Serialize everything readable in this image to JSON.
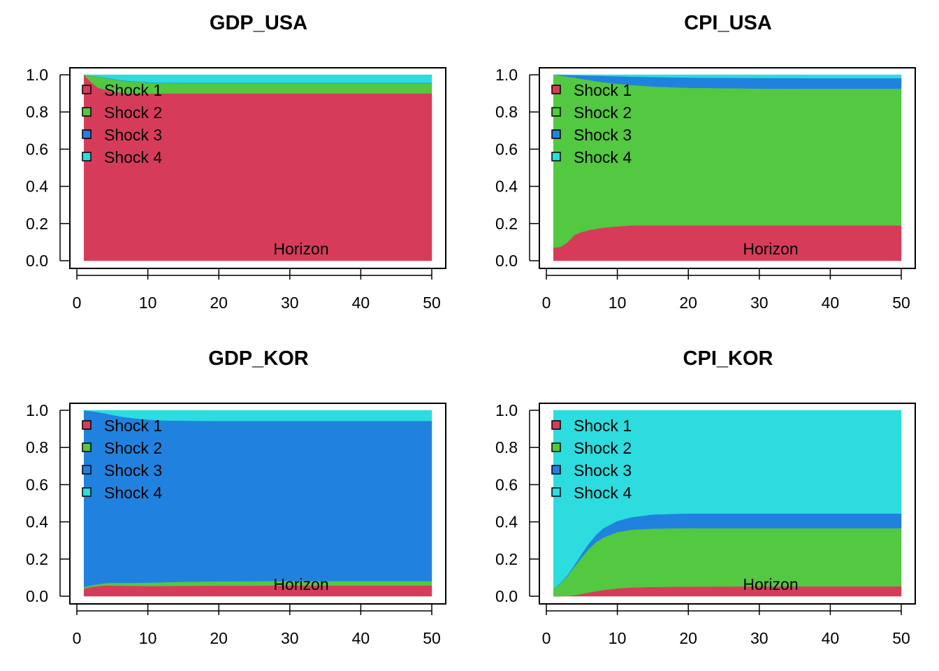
{
  "chart_data": [
    {
      "type": "area",
      "stacked": true,
      "title": "GDP_USA",
      "xlabel": "Horizon",
      "ylabel": "",
      "xlim": [
        0,
        50
      ],
      "ylim": [
        0,
        1
      ],
      "xticks": [
        "0",
        "10",
        "20",
        "30",
        "40",
        "50"
      ],
      "yticks": [
        "0.0",
        "0.2",
        "0.4",
        "0.6",
        "0.8",
        "1.0"
      ],
      "grid": false,
      "legend_position": "top-left",
      "x": [
        1,
        2,
        3,
        4,
        5,
        6,
        7,
        8,
        10,
        12,
        15,
        20,
        30,
        40,
        50
      ],
      "series": [
        {
          "name": "Shock 1",
          "color": "#D63C5A",
          "values": [
            1.0,
            0.96,
            0.93,
            0.92,
            0.91,
            0.905,
            0.9,
            0.9,
            0.9,
            0.9,
            0.9,
            0.9,
            0.9,
            0.9,
            0.9
          ]
        },
        {
          "name": "Shock 2",
          "color": "#53C841",
          "values": [
            0.0,
            0.035,
            0.06,
            0.063,
            0.066,
            0.066,
            0.066,
            0.063,
            0.058,
            0.056,
            0.055,
            0.055,
            0.055,
            0.055,
            0.055
          ]
        },
        {
          "name": "Shock 3",
          "color": "#2082DE",
          "values": [
            0.0,
            0.001,
            0.001,
            0.002,
            0.002,
            0.002,
            0.002,
            0.002,
            0.002,
            0.002,
            0.002,
            0.002,
            0.002,
            0.002,
            0.002
          ]
        },
        {
          "name": "Shock 4",
          "color": "#2CDCDF",
          "values": [
            0.0,
            0.004,
            0.009,
            0.015,
            0.022,
            0.027,
            0.032,
            0.035,
            0.04,
            0.042,
            0.043,
            0.043,
            0.043,
            0.043,
            0.043
          ]
        }
      ]
    },
    {
      "type": "area",
      "stacked": true,
      "title": "CPI_USA",
      "xlabel": "Horizon",
      "ylabel": "",
      "xlim": [
        0,
        50
      ],
      "ylim": [
        0,
        1
      ],
      "xticks": [
        "0",
        "10",
        "20",
        "30",
        "40",
        "50"
      ],
      "yticks": [
        "0.0",
        "0.2",
        "0.4",
        "0.6",
        "0.8",
        "1.0"
      ],
      "grid": false,
      "legend_position": "top-left",
      "x": [
        1,
        2,
        3,
        4,
        5,
        6,
        7,
        8,
        10,
        12,
        15,
        20,
        30,
        40,
        50
      ],
      "series": [
        {
          "name": "Shock 1",
          "color": "#D63C5A",
          "values": [
            0.07,
            0.075,
            0.1,
            0.14,
            0.155,
            0.165,
            0.172,
            0.178,
            0.185,
            0.19,
            0.19,
            0.19,
            0.19,
            0.19,
            0.19
          ]
        },
        {
          "name": "Shock 2",
          "color": "#53C841",
          "values": [
            0.93,
            0.92,
            0.89,
            0.845,
            0.823,
            0.807,
            0.793,
            0.782,
            0.767,
            0.755,
            0.747,
            0.74,
            0.736,
            0.735,
            0.735
          ]
        },
        {
          "name": "Shock 3",
          "color": "#2082DE",
          "values": [
            0.0,
            0.005,
            0.009,
            0.013,
            0.019,
            0.024,
            0.03,
            0.034,
            0.04,
            0.045,
            0.051,
            0.055,
            0.057,
            0.057,
            0.057
          ]
        },
        {
          "name": "Shock 4",
          "color": "#2CDCDF",
          "values": [
            0.0,
            0.0,
            0.001,
            0.002,
            0.003,
            0.004,
            0.005,
            0.006,
            0.008,
            0.01,
            0.012,
            0.015,
            0.017,
            0.018,
            0.018
          ]
        }
      ]
    },
    {
      "type": "area",
      "stacked": true,
      "title": "GDP_KOR",
      "xlabel": "Horizon",
      "ylabel": "",
      "xlim": [
        0,
        50
      ],
      "ylim": [
        0,
        1
      ],
      "xticks": [
        "0",
        "10",
        "20",
        "30",
        "40",
        "50"
      ],
      "yticks": [
        "0.0",
        "0.2",
        "0.4",
        "0.6",
        "0.8",
        "1.0"
      ],
      "grid": false,
      "legend_position": "top-left",
      "x": [
        1,
        2,
        3,
        4,
        5,
        6,
        7,
        8,
        10,
        12,
        15,
        20,
        30,
        40,
        50
      ],
      "series": [
        {
          "name": "Shock 1",
          "color": "#D63C5A",
          "values": [
            0.04,
            0.05,
            0.055,
            0.058,
            0.058,
            0.057,
            0.056,
            0.056,
            0.055,
            0.055,
            0.056,
            0.057,
            0.058,
            0.058,
            0.058
          ]
        },
        {
          "name": "Shock 2",
          "color": "#53C841",
          "values": [
            0.01,
            0.008,
            0.01,
            0.012,
            0.014,
            0.015,
            0.016,
            0.016,
            0.018,
            0.02,
            0.022,
            0.023,
            0.024,
            0.024,
            0.024
          ]
        },
        {
          "name": "Shock 3",
          "color": "#2082DE",
          "values": [
            0.95,
            0.937,
            0.925,
            0.913,
            0.903,
            0.896,
            0.89,
            0.885,
            0.877,
            0.871,
            0.866,
            0.863,
            0.861,
            0.861,
            0.861
          ]
        },
        {
          "name": "Shock 4",
          "color": "#2CDCDF",
          "values": [
            0.0,
            0.005,
            0.01,
            0.017,
            0.025,
            0.032,
            0.038,
            0.043,
            0.05,
            0.054,
            0.056,
            0.057,
            0.057,
            0.057,
            0.057
          ]
        }
      ]
    },
    {
      "type": "area",
      "stacked": true,
      "title": "CPI_KOR",
      "xlabel": "Horizon",
      "ylabel": "",
      "xlim": [
        0,
        50
      ],
      "ylim": [
        0,
        1
      ],
      "xticks": [
        "0",
        "10",
        "20",
        "30",
        "40",
        "50"
      ],
      "yticks": [
        "0.0",
        "0.2",
        "0.4",
        "0.6",
        "0.8",
        "1.0"
      ],
      "grid": false,
      "legend_position": "top-left",
      "x": [
        1,
        2,
        3,
        4,
        5,
        6,
        7,
        8,
        10,
        12,
        15,
        20,
        30,
        40,
        50
      ],
      "series": [
        {
          "name": "Shock 1",
          "color": "#D63C5A",
          "values": [
            0.0,
            0.0,
            0.002,
            0.006,
            0.012,
            0.02,
            0.027,
            0.033,
            0.042,
            0.047,
            0.05,
            0.052,
            0.053,
            0.053,
            0.053
          ]
        },
        {
          "name": "Shock 2",
          "color": "#53C841",
          "values": [
            0.04,
            0.07,
            0.108,
            0.154,
            0.198,
            0.235,
            0.263,
            0.282,
            0.303,
            0.311,
            0.314,
            0.314,
            0.313,
            0.313,
            0.313
          ]
        },
        {
          "name": "Shock 3",
          "color": "#2082DE",
          "values": [
            0.0,
            0.002,
            0.005,
            0.01,
            0.02,
            0.03,
            0.04,
            0.05,
            0.06,
            0.067,
            0.076,
            0.079,
            0.079,
            0.079,
            0.079
          ]
        },
        {
          "name": "Shock 4",
          "color": "#2CDCDF",
          "values": [
            0.96,
            0.928,
            0.885,
            0.83,
            0.77,
            0.715,
            0.67,
            0.635,
            0.595,
            0.575,
            0.56,
            0.555,
            0.555,
            0.555,
            0.555
          ]
        }
      ]
    }
  ]
}
